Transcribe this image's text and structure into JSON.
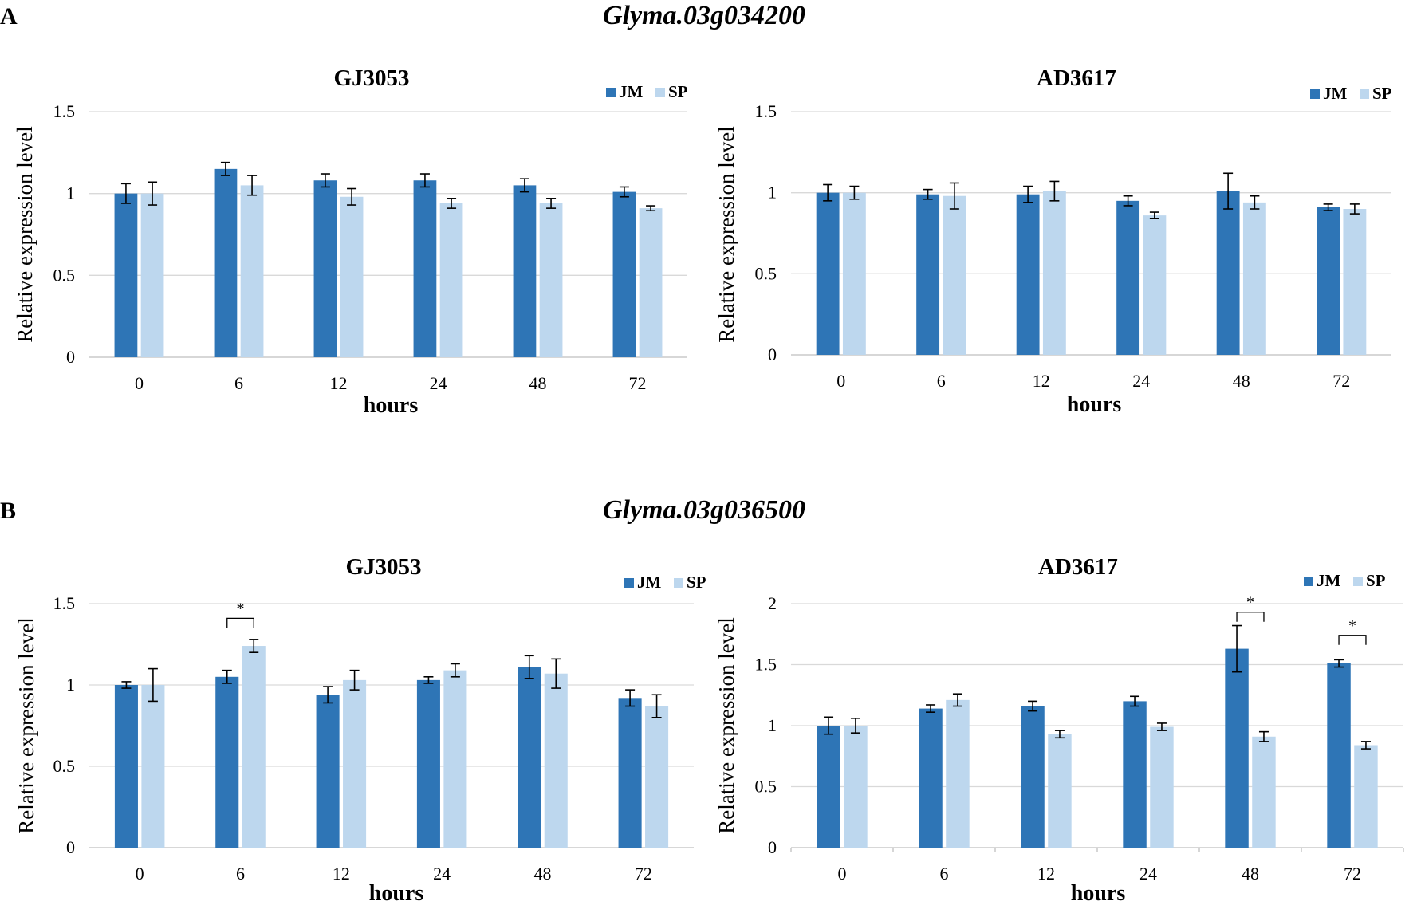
{
  "colors": {
    "JM": "#2e75b6",
    "SP": "#bdd7ee"
  },
  "panels": [
    {
      "letter": "A",
      "gene": "Glyma.03g034200"
    },
    {
      "letter": "B",
      "gene": "Glyma.03g036500"
    }
  ],
  "chart_data": [
    {
      "type": "bar",
      "title": "GJ3053",
      "xlabel": "hours",
      "ylabel": "Relative expression level",
      "categories": [
        "0",
        "6",
        "12",
        "24",
        "48",
        "72"
      ],
      "ylim": [
        0,
        1.5
      ],
      "yticks": [
        0,
        0.5,
        1,
        1.5
      ],
      "ytick_labels": [
        "0",
        "0.5",
        "1",
        "1.5"
      ],
      "legend": "top-right",
      "series": [
        {
          "name": "JM",
          "values": [
            1.0,
            1.15,
            1.08,
            1.08,
            1.05,
            1.01
          ],
          "errors": [
            0.06,
            0.04,
            0.04,
            0.04,
            0.04,
            0.03
          ]
        },
        {
          "name": "SP",
          "values": [
            1.0,
            1.05,
            0.98,
            0.94,
            0.94,
            0.91
          ],
          "errors": [
            0.07,
            0.06,
            0.05,
            0.03,
            0.03,
            0.015
          ]
        }
      ],
      "significance": []
    },
    {
      "type": "bar",
      "title": "AD3617",
      "xlabel": "hours",
      "ylabel": "Relative expression level",
      "categories": [
        "0",
        "6",
        "12",
        "24",
        "48",
        "72"
      ],
      "ylim": [
        0,
        1.5
      ],
      "yticks": [
        0,
        0.5,
        1,
        1.5
      ],
      "ytick_labels": [
        "0",
        "0.5",
        "1",
        "1.5"
      ],
      "legend": "top-right",
      "series": [
        {
          "name": "JM",
          "values": [
            1.0,
            0.99,
            0.99,
            0.95,
            1.01,
            0.91
          ],
          "errors": [
            0.05,
            0.03,
            0.05,
            0.03,
            0.11,
            0.02
          ]
        },
        {
          "name": "SP",
          "values": [
            1.0,
            0.98,
            1.01,
            0.86,
            0.94,
            0.9
          ],
          "errors": [
            0.04,
            0.08,
            0.06,
            0.02,
            0.04,
            0.03
          ]
        }
      ],
      "significance": []
    },
    {
      "type": "bar",
      "title": "GJ3053",
      "xlabel": "hours",
      "ylabel": "Relative expression level",
      "categories": [
        "0",
        "6",
        "12",
        "24",
        "48",
        "72"
      ],
      "ylim": [
        0,
        1.5
      ],
      "yticks": [
        0,
        0.5,
        1,
        1.5
      ],
      "ytick_labels": [
        "0",
        "0.5",
        "1",
        "1.5"
      ],
      "legend": "top-right",
      "series": [
        {
          "name": "JM",
          "values": [
            1.0,
            1.05,
            0.94,
            1.03,
            1.11,
            0.92
          ],
          "errors": [
            0.02,
            0.04,
            0.05,
            0.02,
            0.07,
            0.05
          ]
        },
        {
          "name": "SP",
          "values": [
            1.0,
            1.24,
            1.03,
            1.09,
            1.07,
            0.87
          ],
          "errors": [
            0.1,
            0.04,
            0.06,
            0.04,
            0.09,
            0.07
          ]
        }
      ],
      "significance": [
        {
          "category": "6",
          "label": "*",
          "value": 1.41
        }
      ]
    },
    {
      "type": "bar",
      "title": "AD3617",
      "xlabel": "hours",
      "ylabel": "Relative expression level",
      "categories": [
        "0",
        "6",
        "12",
        "24",
        "48",
        "72"
      ],
      "ylim": [
        0,
        2
      ],
      "yticks": [
        0,
        0.5,
        1,
        1.5,
        2
      ],
      "ytick_labels": [
        "0",
        "0.5",
        "1",
        "1.5",
        "2"
      ],
      "legend": "top-right",
      "series": [
        {
          "name": "JM",
          "values": [
            1.0,
            1.14,
            1.16,
            1.2,
            1.63,
            1.51
          ],
          "errors": [
            0.07,
            0.03,
            0.04,
            0.04,
            0.19,
            0.03
          ]
        },
        {
          "name": "SP",
          "values": [
            1.0,
            1.21,
            0.93,
            0.99,
            0.91,
            0.84
          ],
          "errors": [
            0.06,
            0.05,
            0.03,
            0.03,
            0.04,
            0.03
          ]
        }
      ],
      "significance": [
        {
          "category": "48",
          "label": "*",
          "value": 1.93
        },
        {
          "category": "72",
          "label": "*",
          "value": 1.74
        }
      ]
    }
  ]
}
